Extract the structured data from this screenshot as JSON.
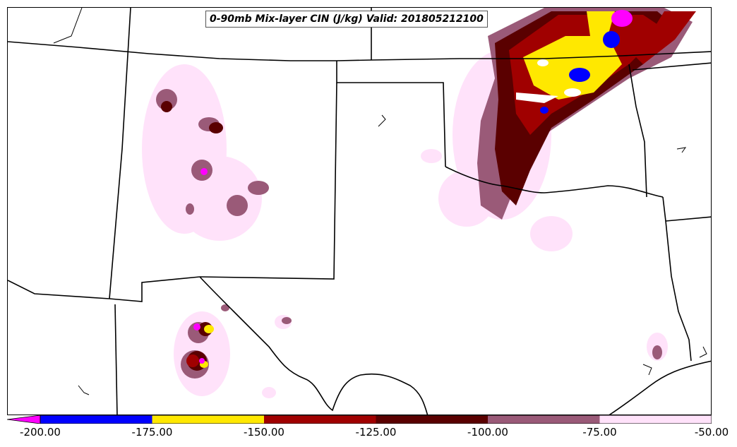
{
  "title": "0-90mb Mix-layer CIN (J/kg) Valid: 201805212100",
  "colorbar": {
    "ticks": [
      "-200.00",
      "-175.00",
      "-150.00",
      "-125.00",
      "-100.00",
      "-75.00",
      "-50.00"
    ],
    "bins": [
      {
        "from": -200,
        "to": -175,
        "color": "#0000ff"
      },
      {
        "from": -175,
        "to": -150,
        "color": "#ffe800"
      },
      {
        "from": -150,
        "to": -125,
        "color": "#a00000"
      },
      {
        "from": -125,
        "to": -100,
        "color": "#5a0000"
      },
      {
        "from": -100,
        "to": -75,
        "color": "#9a5a78"
      },
      {
        "from": -75,
        "to": -50,
        "color": "#ffe2fa"
      }
    ],
    "extend_low_color": "#ff00ff"
  },
  "colors": {
    "weak": "#ffe2fa",
    "moderate": "#9a5a78",
    "strong": "#5a0000",
    "very_strong": "#a00000",
    "extreme": "#ffe800",
    "severe": "#0000ff",
    "below_min": "#ff00ff",
    "boundaries": "#000000"
  }
}
